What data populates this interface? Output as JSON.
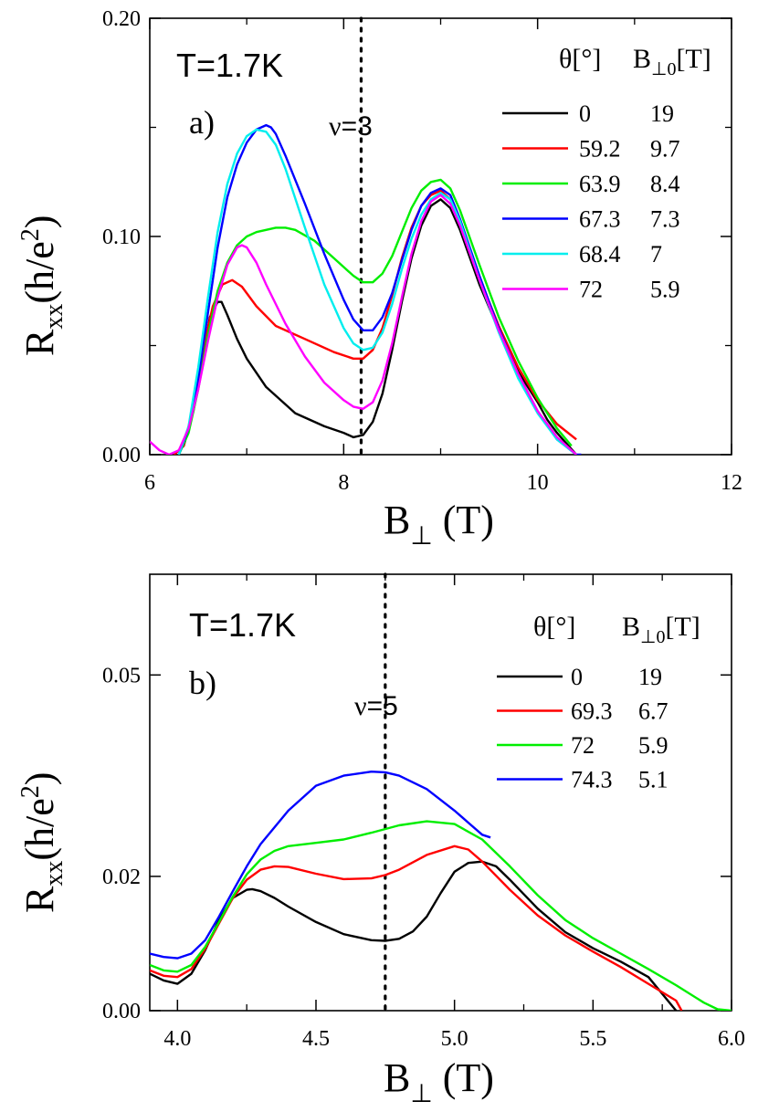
{
  "chart_data": [
    {
      "panel": "a)",
      "type": "line",
      "title": "T=1.7K",
      "xlabel": "B",
      "xlabel_sub": "⊥",
      "xlabel_unit": " (T)",
      "ylabel": "R",
      "ylabel_sub": "xx",
      "ylabel_unit": "(h/e",
      "ylabel_sup": "2",
      "ylabel_close": ")",
      "xlim": [
        6,
        12
      ],
      "ylim": [
        0,
        0.2
      ],
      "xticks": [
        6,
        8,
        10,
        12
      ],
      "xtick_labels": [
        "6",
        "8",
        "10",
        "12"
      ],
      "yticks": [
        0,
        0.1,
        0.2
      ],
      "ytick_labels": [
        "0.00",
        "0.10",
        "0.20"
      ],
      "nu_line": {
        "x": 8.18,
        "label_greek": "ν",
        "label_value": "=3"
      },
      "legend_header": {
        "theta": "θ[°]",
        "b": "B",
        "b_sub": "⊥0",
        "b_unit": "[T]"
      },
      "series": [
        {
          "theta": "0",
          "b": "19",
          "color": "#000000",
          "x": [
            6.25,
            6.35,
            6.45,
            6.55,
            6.62,
            6.7,
            6.74,
            6.8,
            6.9,
            7.0,
            7.2,
            7.5,
            7.8,
            8.0,
            8.1,
            8.2,
            8.3,
            8.4,
            8.5,
            8.6,
            8.7,
            8.8,
            8.9,
            9.0,
            9.1,
            9.2,
            9.4,
            9.6,
            9.8,
            10.0,
            10.1,
            10.2,
            10.3,
            10.4
          ],
          "y": [
            0.0,
            0.004,
            0.02,
            0.045,
            0.063,
            0.07,
            0.07,
            0.064,
            0.053,
            0.044,
            0.031,
            0.019,
            0.013,
            0.01,
            0.008,
            0.009,
            0.015,
            0.028,
            0.048,
            0.07,
            0.09,
            0.105,
            0.114,
            0.117,
            0.113,
            0.103,
            0.078,
            0.057,
            0.038,
            0.024,
            0.016,
            0.01,
            0.005,
            0.0
          ]
        },
        {
          "theta": "59.2",
          "b": "9.7",
          "color": "#ff0000",
          "x": [
            6.25,
            6.35,
            6.45,
            6.55,
            6.65,
            6.75,
            6.85,
            6.95,
            7.1,
            7.3,
            7.6,
            7.9,
            8.1,
            8.2,
            8.3,
            8.4,
            8.5,
            8.6,
            8.7,
            8.8,
            8.9,
            9.0,
            9.1,
            9.2,
            9.4,
            9.6,
            9.8,
            10.0,
            10.2,
            10.4
          ],
          "y": [
            0.0,
            0.004,
            0.022,
            0.048,
            0.068,
            0.078,
            0.08,
            0.077,
            0.068,
            0.059,
            0.053,
            0.047,
            0.044,
            0.044,
            0.048,
            0.058,
            0.073,
            0.09,
            0.104,
            0.114,
            0.119,
            0.121,
            0.117,
            0.107,
            0.081,
            0.059,
            0.04,
            0.025,
            0.014,
            0.007
          ]
        },
        {
          "theta": "63.9",
          "b": "8.4",
          "color": "#00ee00",
          "x": [
            6.3,
            6.4,
            6.5,
            6.6,
            6.7,
            6.8,
            6.9,
            7.0,
            7.1,
            7.2,
            7.3,
            7.4,
            7.5,
            7.7,
            7.9,
            8.1,
            8.2,
            8.3,
            8.4,
            8.5,
            8.6,
            8.7,
            8.8,
            8.9,
            9.0,
            9.1,
            9.2,
            9.4,
            9.6,
            9.8,
            10.0,
            10.2,
            10.35
          ],
          "y": [
            0.0,
            0.01,
            0.03,
            0.055,
            0.075,
            0.088,
            0.096,
            0.1,
            0.102,
            0.103,
            0.104,
            0.104,
            0.103,
            0.098,
            0.09,
            0.082,
            0.079,
            0.079,
            0.083,
            0.091,
            0.102,
            0.113,
            0.121,
            0.125,
            0.126,
            0.122,
            0.112,
            0.087,
            0.063,
            0.043,
            0.026,
            0.012,
            0.004
          ]
        },
        {
          "theta": "67.3",
          "b": "7.3",
          "color": "#0000ff",
          "x": [
            6.3,
            6.4,
            6.5,
            6.6,
            6.7,
            6.8,
            6.9,
            7.0,
            7.1,
            7.2,
            7.25,
            7.3,
            7.4,
            7.6,
            7.8,
            8.0,
            8.1,
            8.2,
            8.3,
            8.4,
            8.5,
            8.6,
            8.7,
            8.8,
            8.9,
            9.0,
            9.1,
            9.2,
            9.4,
            9.6,
            9.8,
            10.0,
            10.2,
            10.4,
            10.45
          ],
          "y": [
            0.0,
            0.012,
            0.035,
            0.065,
            0.095,
            0.118,
            0.133,
            0.143,
            0.149,
            0.151,
            0.15,
            0.147,
            0.137,
            0.115,
            0.092,
            0.071,
            0.062,
            0.057,
            0.057,
            0.063,
            0.074,
            0.089,
            0.103,
            0.114,
            0.12,
            0.122,
            0.119,
            0.108,
            0.082,
            0.058,
            0.037,
            0.02,
            0.007,
            0.0,
            0.0
          ]
        },
        {
          "theta": "68.4",
          "b": "7",
          "color": "#00eeee",
          "x": [
            6.3,
            6.4,
            6.5,
            6.6,
            6.7,
            6.8,
            6.9,
            7.0,
            7.1,
            7.2,
            7.3,
            7.4,
            7.6,
            7.8,
            8.0,
            8.1,
            8.2,
            8.3,
            8.4,
            8.5,
            8.6,
            8.7,
            8.8,
            8.9,
            9.0,
            9.1,
            9.2,
            9.4,
            9.6,
            9.8,
            10.0,
            10.2,
            10.4
          ],
          "y": [
            0.0,
            0.013,
            0.04,
            0.072,
            0.102,
            0.124,
            0.138,
            0.146,
            0.149,
            0.148,
            0.142,
            0.131,
            0.104,
            0.078,
            0.058,
            0.051,
            0.048,
            0.049,
            0.056,
            0.069,
            0.085,
            0.099,
            0.11,
            0.117,
            0.12,
            0.117,
            0.107,
            0.08,
            0.056,
            0.035,
            0.019,
            0.007,
            0.0
          ]
        },
        {
          "theta": "72",
          "b": "5.9",
          "color": "#ff00ff",
          "x": [
            6.0,
            6.1,
            6.2,
            6.3,
            6.4,
            6.5,
            6.6,
            6.7,
            6.8,
            6.9,
            6.95,
            7.0,
            7.1,
            7.2,
            7.4,
            7.6,
            7.8,
            8.0,
            8.1,
            8.2,
            8.3,
            8.4,
            8.5,
            8.6,
            8.7,
            8.8,
            8.9,
            9.0,
            9.1,
            9.2,
            9.4,
            9.6,
            9.8,
            10.0,
            10.2,
            10.4
          ],
          "y": [
            0.006,
            0.002,
            0.0,
            0.002,
            0.012,
            0.03,
            0.052,
            0.072,
            0.087,
            0.095,
            0.096,
            0.095,
            0.088,
            0.078,
            0.06,
            0.045,
            0.033,
            0.025,
            0.022,
            0.021,
            0.024,
            0.034,
            0.051,
            0.072,
            0.092,
            0.107,
            0.116,
            0.119,
            0.115,
            0.105,
            0.08,
            0.057,
            0.037,
            0.02,
            0.008,
            0.0
          ]
        }
      ]
    },
    {
      "panel": "b)",
      "type": "line",
      "title": "T=1.7K",
      "xlabel": "B",
      "xlabel_sub": "⊥",
      "xlabel_unit": " (T)",
      "ylabel": "R",
      "ylabel_sub": "xx",
      "ylabel_unit": "(h/e",
      "ylabel_sup": "2",
      "ylabel_close": ")",
      "xlim": [
        3.9,
        6.0
      ],
      "ylim": [
        0,
        0.065
      ],
      "xticks": [
        4.0,
        4.5,
        5.0,
        5.5,
        6.0
      ],
      "xtick_labels": [
        "4.0",
        "4.5",
        "5.0",
        "5.5",
        "6.0"
      ],
      "yticks": [
        0,
        0.02,
        0.05
      ],
      "ytick_labels": [
        "0.00",
        "0.02",
        "0.05"
      ],
      "nu_line": {
        "x": 4.75,
        "label_greek": "ν",
        "label_value": "=5"
      },
      "legend_header": {
        "theta": "θ[°]",
        "b": "B",
        "b_sub": "⊥0",
        "b_unit": "[T]"
      },
      "series": [
        {
          "theta": "0",
          "b": "19",
          "color": "#000000",
          "x": [
            3.9,
            3.95,
            4.0,
            4.05,
            4.1,
            4.15,
            4.2,
            4.25,
            4.27,
            4.3,
            4.35,
            4.4,
            4.5,
            4.6,
            4.7,
            4.75,
            4.8,
            4.85,
            4.9,
            4.95,
            5.0,
            5.05,
            5.1,
            5.15,
            5.2,
            5.3,
            5.4,
            5.5,
            5.6,
            5.7,
            5.75,
            5.8
          ],
          "y": [
            0.0055,
            0.0045,
            0.004,
            0.0055,
            0.009,
            0.0135,
            0.0168,
            0.018,
            0.0181,
            0.0178,
            0.0168,
            0.0155,
            0.0132,
            0.0114,
            0.0105,
            0.0104,
            0.0107,
            0.0118,
            0.014,
            0.0175,
            0.0207,
            0.022,
            0.0222,
            0.0215,
            0.0195,
            0.0152,
            0.0117,
            0.0093,
            0.0073,
            0.005,
            0.0025,
            0.0
          ]
        },
        {
          "theta": "69.3",
          "b": "6.7",
          "color": "#ff0000",
          "x": [
            3.9,
            3.95,
            4.0,
            4.05,
            4.1,
            4.15,
            4.2,
            4.25,
            4.3,
            4.35,
            4.4,
            4.5,
            4.6,
            4.7,
            4.75,
            4.8,
            4.9,
            5.0,
            5.05,
            5.1,
            5.2,
            5.3,
            5.4,
            5.5,
            5.6,
            5.7,
            5.8,
            5.82
          ],
          "y": [
            0.006,
            0.0052,
            0.005,
            0.0062,
            0.0092,
            0.013,
            0.0168,
            0.0195,
            0.021,
            0.0215,
            0.0214,
            0.0204,
            0.0196,
            0.0197,
            0.0202,
            0.021,
            0.0232,
            0.0245,
            0.024,
            0.0222,
            0.018,
            0.0142,
            0.0112,
            0.0088,
            0.0065,
            0.004,
            0.0015,
            0.0
          ]
        },
        {
          "theta": "72",
          "b": "5.9",
          "color": "#00ee00",
          "x": [
            3.9,
            3.95,
            4.0,
            4.05,
            4.1,
            4.15,
            4.2,
            4.25,
            4.3,
            4.35,
            4.4,
            4.5,
            4.6,
            4.7,
            4.8,
            4.9,
            5.0,
            5.1,
            5.2,
            5.3,
            5.4,
            5.5,
            5.6,
            5.7,
            5.8,
            5.9,
            5.95,
            6.0
          ],
          "y": [
            0.0068,
            0.006,
            0.0058,
            0.0068,
            0.0095,
            0.0132,
            0.017,
            0.0203,
            0.0225,
            0.0238,
            0.0245,
            0.025,
            0.0255,
            0.0265,
            0.0276,
            0.0282,
            0.0278,
            0.0255,
            0.0215,
            0.0172,
            0.0135,
            0.0108,
            0.0085,
            0.0062,
            0.0038,
            0.0012,
            0.0002,
            0.0
          ]
        },
        {
          "theta": "74.3",
          "b": "5.1",
          "color": "#0000ff",
          "x": [
            3.9,
            3.95,
            4.0,
            4.05,
            4.1,
            4.15,
            4.2,
            4.25,
            4.3,
            4.4,
            4.5,
            4.6,
            4.7,
            4.75,
            4.8,
            4.9,
            5.0,
            5.05,
            5.1,
            5.13
          ],
          "y": [
            0.0085,
            0.008,
            0.0078,
            0.0085,
            0.0105,
            0.014,
            0.0178,
            0.0215,
            0.0248,
            0.0298,
            0.0335,
            0.035,
            0.0356,
            0.0355,
            0.035,
            0.033,
            0.0298,
            0.028,
            0.0262,
            0.0258
          ]
        }
      ]
    }
  ]
}
